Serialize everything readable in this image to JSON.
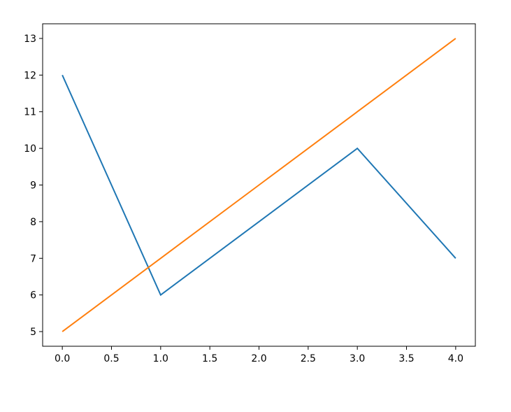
{
  "chart_data": {
    "type": "line",
    "title": "",
    "xlabel": "",
    "ylabel": "",
    "xlim": [
      -0.2,
      4.2
    ],
    "ylim": [
      4.6,
      13.4
    ],
    "grid": false,
    "xticks": [
      0.0,
      0.5,
      1.0,
      1.5,
      2.0,
      2.5,
      3.0,
      3.5,
      4.0
    ],
    "xtick_labels": [
      "0.0",
      "0.5",
      "1.0",
      "1.5",
      "2.0",
      "2.5",
      "3.0",
      "3.5",
      "4.0"
    ],
    "yticks": [
      5,
      6,
      7,
      8,
      9,
      10,
      11,
      12,
      13
    ],
    "ytick_labels": [
      "5",
      "6",
      "7",
      "8",
      "9",
      "10",
      "11",
      "12",
      "13"
    ],
    "x": [
      0,
      1,
      2,
      3,
      4
    ],
    "series": [
      {
        "values": [
          12,
          6,
          8,
          10,
          7
        ],
        "color": "#1f77b4"
      },
      {
        "values": [
          5,
          7,
          9,
          11,
          13
        ],
        "color": "#ff7f0e"
      }
    ]
  }
}
